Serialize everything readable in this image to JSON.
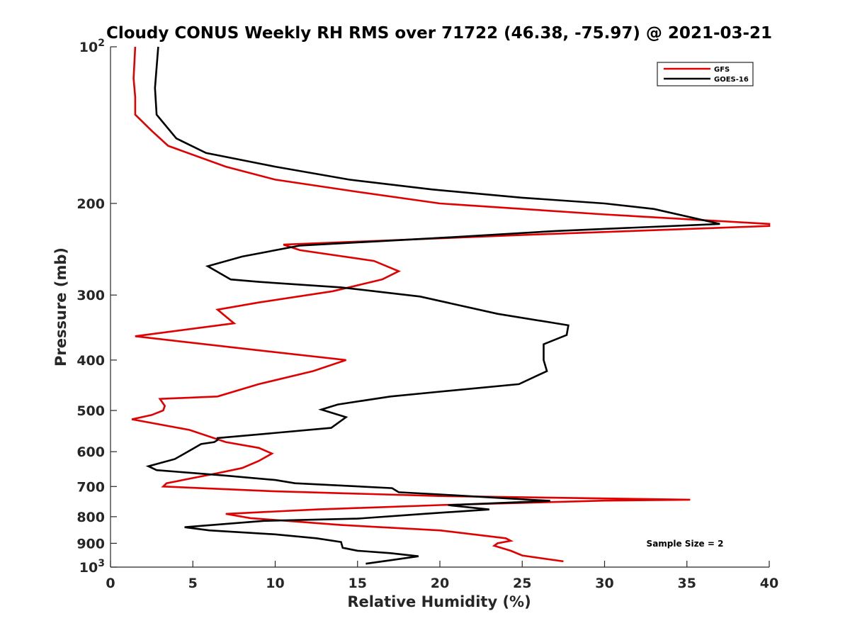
{
  "chart_data": {
    "type": "line",
    "title": "Cloudy CONUS Weekly RH RMS over 71722 (46.38, -75.97) @ 2021-03-21",
    "xlabel": "Relative Humidity (%)",
    "ylabel": "Pressure (mb)",
    "xlim": [
      0,
      40
    ],
    "ylim": [
      100,
      1000
    ],
    "yscale": "log",
    "y_reversed": true,
    "x_ticks": [
      0,
      5,
      10,
      15,
      20,
      25,
      30,
      35,
      40
    ],
    "x_tick_labels": [
      "0",
      "5",
      "10",
      "15",
      "20",
      "25",
      "30",
      "35",
      "40"
    ],
    "y_ticks": [
      100,
      200,
      300,
      400,
      500,
      600,
      700,
      800,
      900,
      1000
    ],
    "y_tick_labels": [
      {
        "base": "10",
        "exp": "2"
      },
      {
        "base": "200",
        "exp": ""
      },
      {
        "base": "300",
        "exp": ""
      },
      {
        "base": "400",
        "exp": ""
      },
      {
        "base": "500",
        "exp": ""
      },
      {
        "base": "600",
        "exp": ""
      },
      {
        "base": "700",
        "exp": ""
      },
      {
        "base": "800",
        "exp": ""
      },
      {
        "base": "900",
        "exp": ""
      },
      {
        "base": "10",
        "exp": "3"
      }
    ],
    "legend_position": "top-right",
    "annotation": "Sample Size = 2",
    "series": [
      {
        "name": "GFS",
        "color": "#e00000",
        "points": [
          [
            1.5,
            100
          ],
          [
            1.4,
            115
          ],
          [
            1.5,
            125
          ],
          [
            1.5,
            135
          ],
          [
            2.5,
            145
          ],
          [
            3.5,
            155
          ],
          [
            7,
            170
          ],
          [
            10,
            180
          ],
          [
            15,
            190
          ],
          [
            20,
            200
          ],
          [
            30,
            210
          ],
          [
            40,
            219
          ],
          [
            40,
            221
          ],
          [
            25,
            230
          ],
          [
            10.5,
            240
          ],
          [
            11.5,
            246
          ],
          [
            16,
            258
          ],
          [
            17.5,
            270
          ],
          [
            16.5,
            280
          ],
          [
            13.5,
            295
          ],
          [
            9,
            310
          ],
          [
            6.5,
            320
          ],
          [
            7.5,
            340
          ],
          [
            1.5,
            360
          ],
          [
            8,
            380
          ],
          [
            14.3,
            400
          ],
          [
            12.3,
            420
          ],
          [
            9,
            445
          ],
          [
            6.5,
            470
          ],
          [
            3,
            475
          ],
          [
            3.3,
            490
          ],
          [
            3.2,
            500
          ],
          [
            2.5,
            510
          ],
          [
            1.3,
            520
          ],
          [
            4.8,
            545
          ],
          [
            7,
            575
          ],
          [
            9,
            590
          ],
          [
            9.8,
            605
          ],
          [
            9,
            625
          ],
          [
            8,
            645
          ],
          [
            6.5,
            660
          ],
          [
            3.4,
            690
          ],
          [
            3.2,
            700
          ],
          [
            10,
            715
          ],
          [
            20,
            730
          ],
          [
            35.2,
            742
          ],
          [
            30,
            745
          ],
          [
            20,
            760
          ],
          [
            12.5,
            775
          ],
          [
            7,
            790
          ],
          [
            8.5,
            805
          ],
          [
            14,
            830
          ],
          [
            20,
            850
          ],
          [
            24,
            880
          ],
          [
            24.3,
            890
          ],
          [
            23.5,
            900
          ],
          [
            23.3,
            910
          ],
          [
            24.3,
            930
          ],
          [
            25,
            950
          ],
          [
            27.5,
            975
          ]
        ]
      },
      {
        "name": "GOES-16",
        "color": "#000000",
        "points": [
          [
            2.9,
            100
          ],
          [
            2.7,
            120
          ],
          [
            2.8,
            135
          ],
          [
            4,
            150
          ],
          [
            5.8,
            160
          ],
          [
            10,
            170
          ],
          [
            14.5,
            180
          ],
          [
            19.5,
            188
          ],
          [
            25,
            195
          ],
          [
            30,
            200
          ],
          [
            33,
            205
          ],
          [
            37,
            219
          ],
          [
            27,
            226
          ],
          [
            20,
            233
          ],
          [
            11.5,
            241
          ],
          [
            8,
            253
          ],
          [
            5.9,
            264
          ],
          [
            7.3,
            280
          ],
          [
            9,
            283
          ],
          [
            14,
            290
          ],
          [
            18.8,
            302
          ],
          [
            23.5,
            326
          ],
          [
            27.8,
            343
          ],
          [
            27.7,
            358
          ],
          [
            26.3,
            373
          ],
          [
            26.3,
            400
          ],
          [
            26.5,
            420
          ],
          [
            24.8,
            445
          ],
          [
            20,
            460
          ],
          [
            17,
            470
          ],
          [
            13.8,
            487
          ],
          [
            12.8,
            498
          ],
          [
            14.3,
            515
          ],
          [
            13.4,
            540
          ],
          [
            6.5,
            565
          ],
          [
            6.5,
            570
          ],
          [
            6.3,
            575
          ],
          [
            5.5,
            580
          ],
          [
            4.5,
            605
          ],
          [
            3.9,
            620
          ],
          [
            2.3,
            640
          ],
          [
            2.8,
            651
          ],
          [
            7,
            667
          ],
          [
            10,
            680
          ],
          [
            11.2,
            690
          ],
          [
            17.1,
            705
          ],
          [
            17.5,
            718
          ],
          [
            20,
            725
          ],
          [
            26.7,
            746
          ],
          [
            20.5,
            760
          ],
          [
            23,
            775
          ],
          [
            19,
            790
          ],
          [
            15,
            807
          ],
          [
            9.3,
            815
          ],
          [
            4.5,
            838
          ],
          [
            6,
            850
          ],
          [
            10,
            865
          ],
          [
            12.5,
            880
          ],
          [
            14,
            895
          ],
          [
            14.1,
            918
          ],
          [
            15,
            930
          ],
          [
            17,
            940
          ],
          [
            18.7,
            953
          ],
          [
            17,
            970
          ],
          [
            15.5,
            985
          ]
        ]
      }
    ]
  }
}
